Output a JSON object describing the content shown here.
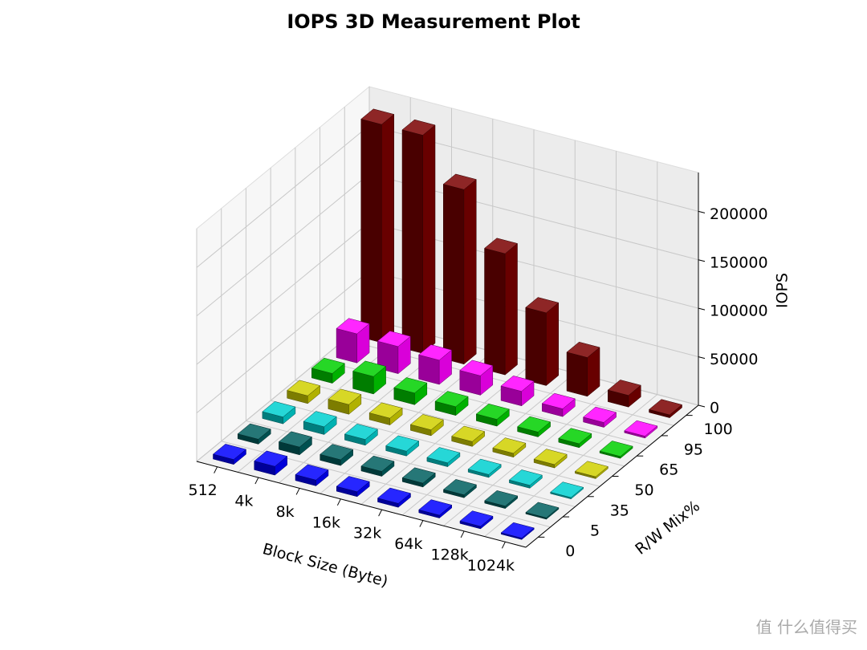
{
  "chart_data": {
    "type": "bar3d",
    "title": "IOPS 3D Measurement Plot",
    "x_label": "Block Size (Byte)",
    "y_label": "R/W Mix%",
    "z_label": "IOPS",
    "categories": [
      "512",
      "4k",
      "8k",
      "16k",
      "32k",
      "64k",
      "128k",
      "1024k"
    ],
    "series": [
      {
        "name": "0",
        "color": "#0000ff",
        "values": [
          5000,
          9000,
          6000,
          5000,
          4000,
          3000,
          2500,
          1500
        ]
      },
      {
        "name": "5",
        "color": "#005f5f",
        "values": [
          5000,
          8000,
          6000,
          5000,
          4000,
          3000,
          2500,
          1500
        ]
      },
      {
        "name": "35",
        "color": "#00d0d0",
        "values": [
          7000,
          8000,
          6000,
          5000,
          4000,
          3000,
          3000,
          1500
        ]
      },
      {
        "name": "50",
        "color": "#d0d000",
        "values": [
          8000,
          10000,
          7000,
          6000,
          5000,
          4000,
          3500,
          2000
        ]
      },
      {
        "name": "65",
        "color": "#00d000",
        "values": [
          10000,
          18000,
          12000,
          9000,
          7000,
          5000,
          4000,
          2000
        ]
      },
      {
        "name": "95",
        "color": "#ff00ff",
        "values": [
          30000,
          28000,
          25000,
          20000,
          15000,
          8000,
          5000,
          2000
        ]
      },
      {
        "name": "100",
        "color": "#7a0000",
        "values": [
          225000,
          225000,
          180000,
          125000,
          75000,
          40000,
          12000,
          3000
        ]
      }
    ],
    "zlim": [
      0,
      240000
    ],
    "zticks": [
      0,
      50000,
      100000,
      150000,
      200000
    ],
    "grid": true,
    "watermark": "值 什么值得买"
  }
}
